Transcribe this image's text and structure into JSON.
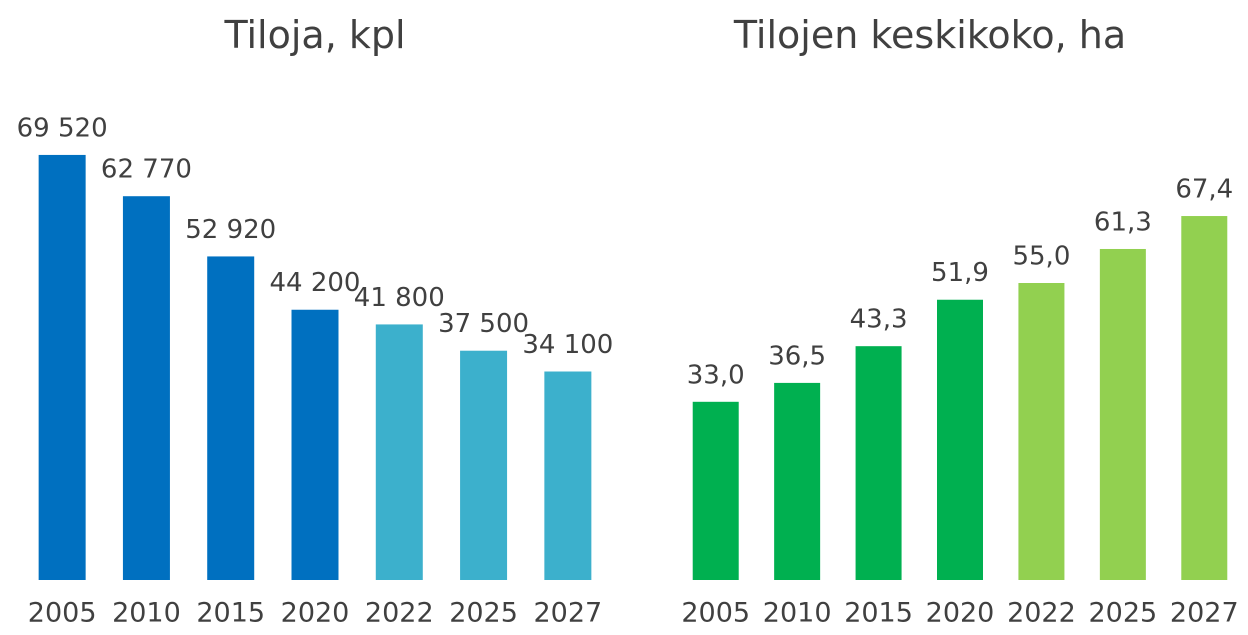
{
  "chart_data": [
    {
      "type": "bar",
      "title": "Tiloja, kpl",
      "categories": [
        "2005",
        "2010",
        "2015",
        "2020",
        "2022",
        "2025",
        "2027"
      ],
      "values": [
        69520,
        62770,
        52920,
        44200,
        41800,
        37500,
        34100
      ],
      "value_labels": [
        "69 520",
        "62 770",
        "52 920",
        "44 200",
        "41 800",
        "37 500",
        "34 100"
      ],
      "colors": [
        "#0070c0",
        "#0070c0",
        "#0070c0",
        "#0070c0",
        "#3cb0cc",
        "#3cb0cc",
        "#3cb0cc"
      ],
      "ylim": [
        0,
        70000
      ]
    },
    {
      "type": "bar",
      "title": "Tilojen keskikoko, ha",
      "categories": [
        "2005",
        "2010",
        "2015",
        "2020",
        "2022",
        "2025",
        "2027"
      ],
      "values": [
        33.0,
        36.5,
        43.3,
        51.9,
        55.0,
        61.3,
        67.4
      ],
      "value_labels": [
        "33,0",
        "36,5",
        "43,3",
        "51,9",
        "55,0",
        "61,3",
        "67,4"
      ],
      "colors": [
        "#00b050",
        "#00b050",
        "#00b050",
        "#00b050",
        "#92d050",
        "#92d050",
        "#92d050"
      ],
      "ylim": [
        0,
        70
      ]
    }
  ]
}
